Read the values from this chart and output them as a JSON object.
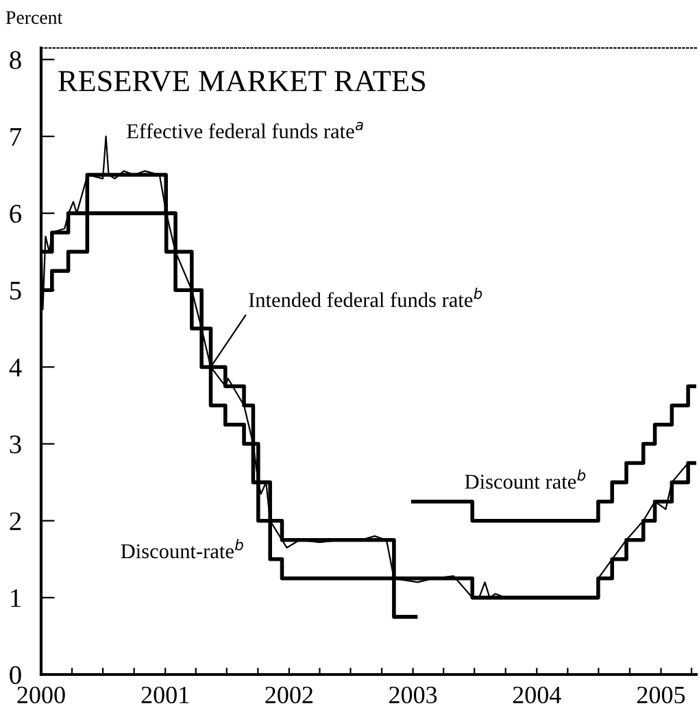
{
  "chart_data": {
    "type": "step",
    "title": "RESERVE MARKET RATES",
    "ylabel": "Percent",
    "xlim": [
      "2000-01-01",
      "2005-04-15"
    ],
    "ylim": [
      0,
      8.15
    ],
    "xticks": [
      {
        "value": "2000-01-01",
        "label": "2000"
      },
      {
        "value": "2000-04-01",
        "label": null
      },
      {
        "value": "2000-07-01",
        "label": null
      },
      {
        "value": "2000-10-01",
        "label": null
      },
      {
        "value": "2001-01-01",
        "label": "2001"
      },
      {
        "value": "2001-04-01",
        "label": null
      },
      {
        "value": "2001-07-01",
        "label": null
      },
      {
        "value": "2001-10-01",
        "label": null
      },
      {
        "value": "2002-01-01",
        "label": "2002"
      },
      {
        "value": "2002-04-01",
        "label": null
      },
      {
        "value": "2002-07-01",
        "label": null
      },
      {
        "value": "2002-10-01",
        "label": null
      },
      {
        "value": "2003-01-01",
        "label": "2003"
      },
      {
        "value": "2003-04-01",
        "label": null
      },
      {
        "value": "2003-07-01",
        "label": null
      },
      {
        "value": "2003-10-01",
        "label": null
      },
      {
        "value": "2004-01-01",
        "label": "2004"
      },
      {
        "value": "2004-04-01",
        "label": null
      },
      {
        "value": "2004-07-01",
        "label": null
      },
      {
        "value": "2004-10-01",
        "label": null
      },
      {
        "value": "2005-01-01",
        "label": "2005"
      },
      {
        "value": "2005-04-01",
        "label": null
      }
    ],
    "yticks": [
      0,
      1,
      2,
      3,
      4,
      5,
      6,
      7,
      8
    ],
    "grid": false,
    "legend": false,
    "series": [
      {
        "name": "Effective federal funds rate$^{a}$",
        "type": "line",
        "color": "#000000",
        "x": [
          "2000-01-03",
          "2000-01-06",
          "2000-01-14",
          "2000-01-25",
          "2000-02-03",
          "2000-03-10",
          "2000-03-22",
          "2000-04-05",
          "2000-04-15",
          "2000-05-17",
          "2000-07-01",
          "2000-07-10",
          "2000-07-18",
          "2000-08-05",
          "2000-09-01",
          "2000-10-01",
          "2000-11-01",
          "2000-12-15",
          "2001-01-04",
          "2001-01-31",
          "2001-03-20",
          "2001-04-18",
          "2001-05-15",
          "2001-06-27",
          "2001-07-05",
          "2001-08-21",
          "2001-09-17",
          "2001-10-02",
          "2001-10-10",
          "2001-10-25",
          "2001-11-06",
          "2001-12-11",
          "2001-12-25",
          "2002-02-01",
          "2002-04-01",
          "2002-06-01",
          "2002-08-01",
          "2002-09-10",
          "2002-10-15",
          "2002-11-06",
          "2003-01-15",
          "2003-03-01",
          "2003-05-01",
          "2003-06-25",
          "2003-07-15",
          "2003-08-01",
          "2003-08-15",
          "2003-09-01",
          "2003-10-01",
          "2004-06-29",
          "2004-06-30",
          "2004-08-10",
          "2004-09-21",
          "2004-11-10",
          "2004-12-14",
          "2005-01-15",
          "2005-02-02",
          "2005-03-22"
        ],
        "values": [
          5.45,
          4.75,
          5.7,
          5.5,
          5.75,
          5.8,
          6.0,
          6.15,
          6.0,
          6.5,
          6.45,
          7.0,
          6.5,
          6.45,
          6.55,
          6.5,
          6.55,
          6.5,
          6.0,
          5.5,
          5.0,
          4.5,
          4.0,
          3.75,
          3.85,
          3.5,
          3.0,
          2.5,
          2.35,
          2.5,
          2.0,
          1.75,
          1.65,
          1.75,
          1.72,
          1.75,
          1.75,
          1.8,
          1.75,
          1.25,
          1.2,
          1.25,
          1.28,
          1.0,
          1.0,
          1.2,
          1.0,
          1.05,
          1.0,
          1.0,
          1.25,
          1.5,
          1.75,
          2.0,
          2.25,
          2.15,
          2.5,
          2.75
        ]
      },
      {
        "name": "Intended federal funds rate$^{b}$",
        "color": "#000000",
        "x": [
          "2000-01-01",
          "2000-02-02",
          "2000-03-21",
          "2000-05-16",
          "2001-01-03",
          "2001-01-31",
          "2001-03-20",
          "2001-04-18",
          "2001-05-15",
          "2001-06-27",
          "2001-08-21",
          "2001-09-17",
          "2001-10-02",
          "2001-11-06",
          "2001-12-11",
          "2002-11-06",
          "2003-06-25",
          "2004-06-30",
          "2004-08-10",
          "2004-09-21",
          "2004-11-10",
          "2004-12-14",
          "2005-02-02",
          "2005-03-22",
          "2005-04-10"
        ],
        "values": [
          5.5,
          5.75,
          6.0,
          6.5,
          6.0,
          5.5,
          5.0,
          4.5,
          4.0,
          3.75,
          3.5,
          3.0,
          2.5,
          2.0,
          1.75,
          1.25,
          1.0,
          1.25,
          1.5,
          1.75,
          2.0,
          2.25,
          2.5,
          2.75,
          2.75
        ]
      },
      {
        "name": "Discount-rate$^{b}$",
        "color": "#000000",
        "x": [
          "2000-01-01",
          "2000-02-02",
          "2000-03-21",
          "2000-05-16",
          "2001-01-04",
          "2001-01-31",
          "2001-03-20",
          "2001-04-18",
          "2001-05-15",
          "2001-06-27",
          "2001-08-21",
          "2001-09-17",
          "2001-10-02",
          "2001-11-06",
          "2001-12-11",
          "2002-11-06",
          "2003-01-09"
        ],
        "values": [
          5.0,
          5.25,
          5.5,
          6.0,
          5.5,
          5.0,
          4.5,
          4.0,
          3.5,
          3.25,
          3.0,
          2.5,
          2.0,
          1.5,
          1.25,
          0.75,
          0.75
        ]
      },
      {
        "name": "Discount rate$^{b}$",
        "color": "#000000",
        "x": [
          "2003-01-01",
          "2003-06-25",
          "2004-06-30",
          "2004-08-10",
          "2004-09-21",
          "2004-11-10",
          "2004-12-14",
          "2005-02-02",
          "2005-03-22",
          "2005-04-10"
        ],
        "values": [
          2.25,
          2.0,
          2.25,
          2.5,
          2.75,
          3.0,
          3.25,
          3.5,
          3.75,
          3.75
        ]
      }
    ]
  }
}
